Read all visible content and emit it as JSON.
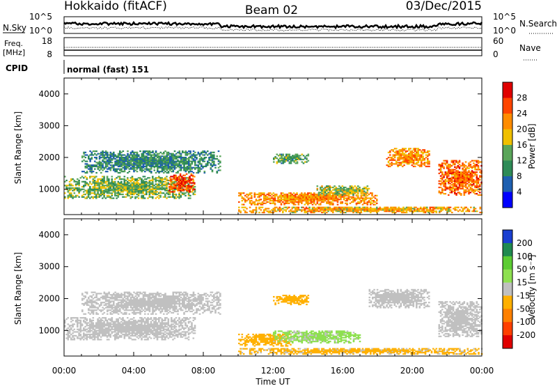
{
  "header": {
    "station": "Hokkaido (fitACF)",
    "beam": "Beam 02",
    "date": "03/Dec/2015"
  },
  "top_panel": {
    "left_label": "N.Sky",
    "right_label": "N.Search",
    "left_ticks": [
      "10^5",
      "10^0"
    ],
    "right_ticks": [
      "10^5",
      "10^0"
    ]
  },
  "freq_panel": {
    "left_label_top": "Freq.",
    "left_label_unit": "[MHz]",
    "left_ticks": [
      "18",
      "8"
    ],
    "right_label": "Nave",
    "right_ticks": [
      "60",
      "0"
    ]
  },
  "cpid_panel": {
    "label": "CPID",
    "text": "normal (fast) 151"
  },
  "colors": {
    "power_scale": [
      "#0000ff",
      "#1e5fb0",
      "#2e8b57",
      "#5aa55a",
      "#f0c000",
      "#ff8c00",
      "#ff4500",
      "#e00000"
    ],
    "velocity_scale": [
      "#1a3fd0",
      "#1f8a50",
      "#5ccc33",
      "#8ee050",
      "#c0c0c0",
      "#ffb000",
      "#ff8000",
      "#ff4000",
      "#e00000"
    ]
  },
  "chart_data": [
    {
      "type": "heatmap",
      "title": "",
      "ylabel": "Slant Range [km]",
      "ylim": [
        200,
        4500
      ],
      "xlim": [
        "00:00",
        "24:00"
      ],
      "yticks": [
        "1000",
        "2000",
        "3000",
        "4000"
      ],
      "colorbar_label": "Power [dB]",
      "colorbar_ticks": [
        "28",
        "24",
        "20",
        "16",
        "12",
        "8",
        "4"
      ],
      "colorbar_range": [
        0,
        32
      ],
      "echo_regions": [
        {
          "t0": 0.0,
          "t1": 7.5,
          "r0": 700,
          "r1": 1400,
          "value": 14
        },
        {
          "t0": 1.0,
          "t1": 9.0,
          "r0": 1500,
          "r1": 2200,
          "value": 10
        },
        {
          "t0": 6.0,
          "t1": 7.5,
          "r0": 900,
          "r1": 1500,
          "value": 26
        },
        {
          "t0": 10.0,
          "t1": 18.0,
          "r0": 500,
          "r1": 900,
          "value": 22
        },
        {
          "t0": 14.5,
          "t1": 17.5,
          "r0": 800,
          "r1": 1100,
          "value": 16
        },
        {
          "t0": 12.0,
          "t1": 14.0,
          "r0": 1800,
          "r1": 2100,
          "value": 12
        },
        {
          "t0": 18.5,
          "t1": 21.0,
          "r0": 1700,
          "r1": 2300,
          "value": 22
        },
        {
          "t0": 21.5,
          "t1": 24.0,
          "r0": 800,
          "r1": 1900,
          "value": 24
        },
        {
          "t0": 10.0,
          "t1": 24.0,
          "r0": 250,
          "r1": 450,
          "value": 20
        }
      ]
    },
    {
      "type": "heatmap",
      "title": "",
      "ylabel": "Slant Range [km]",
      "ylim": [
        200,
        4500
      ],
      "xlim": [
        "00:00",
        "24:00"
      ],
      "yticks": [
        "1000",
        "2000",
        "3000",
        "4000"
      ],
      "xticks": [
        "00:00",
        "04:00",
        "08:00",
        "12:00",
        "16:00",
        "20:00",
        "00:00"
      ],
      "xlabel": "Time UT",
      "colorbar_label": "Velocity [m s⁻¹]",
      "colorbar_ticks": [
        "200",
        "100",
        "50",
        "15",
        "-15",
        "-50",
        "-100",
        "-200"
      ],
      "colorbar_range": [
        -250,
        250
      ],
      "echo_regions": [
        {
          "t0": 0.0,
          "t1": 7.5,
          "r0": 700,
          "r1": 1400,
          "value": 0
        },
        {
          "t0": 1.0,
          "t1": 9.0,
          "r0": 1500,
          "r1": 2200,
          "value": 0
        },
        {
          "t0": 10.0,
          "t1": 13.0,
          "r0": 500,
          "r1": 900,
          "value": -60
        },
        {
          "t0": 12.0,
          "t1": 17.0,
          "r0": 600,
          "r1": 1000,
          "value": 40
        },
        {
          "t0": 12.0,
          "t1": 14.0,
          "r0": 1800,
          "r1": 2100,
          "value": -60
        },
        {
          "t0": 17.5,
          "t1": 21.0,
          "r0": 1700,
          "r1": 2300,
          "value": 0
        },
        {
          "t0": 21.5,
          "t1": 24.0,
          "r0": 800,
          "r1": 1900,
          "value": 0
        },
        {
          "t0": 10.0,
          "t1": 24.0,
          "r0": 250,
          "r1": 450,
          "value": -40
        }
      ]
    }
  ]
}
